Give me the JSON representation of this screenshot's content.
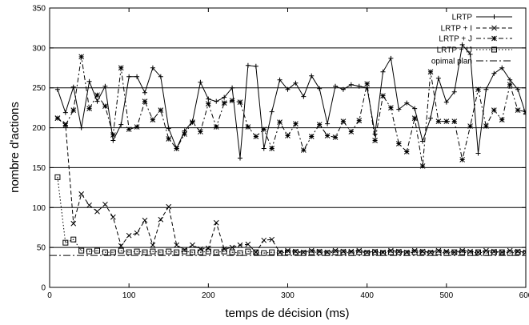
{
  "chart_data": {
    "type": "line",
    "title": "",
    "xlabel": "temps de décision (ms)",
    "ylabel": "nombre d'actions",
    "xlim": [
      0,
      600
    ],
    "ylim": [
      0,
      350
    ],
    "xticks": [
      0,
      100,
      200,
      300,
      400,
      500,
      600
    ],
    "yticks": [
      0,
      50,
      100,
      150,
      200,
      250,
      300,
      350
    ],
    "xtick_labels": [
      "0",
      "100",
      "200",
      "300",
      "400",
      "500",
      "600"
    ],
    "ytick_labels": [
      "0",
      "50",
      "100",
      "150",
      "200",
      "250",
      "300",
      "350"
    ],
    "grid": "horizontal lines at 50, 100, 150, 200, 250, 300",
    "legend_position": "top-right",
    "series": [
      {
        "name": "LRTP",
        "line": "solid",
        "marker": "plus",
        "x": [
          10,
          20,
          30,
          40,
          50,
          60,
          70,
          80,
          90,
          100,
          110,
          120,
          130,
          140,
          150,
          160,
          170,
          180,
          190,
          200,
          210,
          220,
          230,
          240,
          250,
          260,
          270,
          280,
          290,
          300,
          310,
          320,
          330,
          340,
          350,
          360,
          370,
          380,
          390,
          400,
          410,
          420,
          430,
          440,
          450,
          460,
          470,
          480,
          490,
          500,
          510,
          520,
          530,
          540,
          550,
          560,
          570,
          580,
          590,
          600
        ],
        "y": [
          248,
          219,
          251,
          200,
          258,
          233,
          252,
          184,
          204,
          264,
          264,
          244,
          275,
          264,
          199,
          174,
          196,
          208,
          257,
          236,
          233,
          238,
          250,
          162,
          278,
          277,
          174,
          220,
          260,
          248,
          256,
          239,
          265,
          249,
          205,
          252,
          248,
          254,
          252,
          250,
          192,
          270,
          287,
          223,
          231,
          224,
          183,
          212,
          262,
          232,
          245,
          304,
          292,
          168,
          248,
          268,
          275,
          260,
          248,
          217
        ]
      },
      {
        "name": "LRTP + I",
        "line": "dashed",
        "marker": "x",
        "x": [
          10,
          20,
          30,
          40,
          50,
          60,
          70,
          80,
          90,
          100,
          110,
          120,
          130,
          140,
          150,
          160,
          170,
          180,
          190,
          200,
          210,
          220,
          230,
          240,
          250,
          260,
          270,
          280,
          290,
          300,
          310,
          320,
          330,
          340,
          350,
          360,
          370,
          380,
          390,
          400,
          410,
          420,
          430,
          440,
          450,
          460,
          470,
          480,
          490,
          500,
          510,
          520,
          530,
          540,
          550,
          560,
          570,
          580,
          590,
          600
        ],
        "y": [
          212,
          205,
          80,
          117,
          103,
          95,
          104,
          88,
          52,
          65,
          68,
          84,
          53,
          85,
          101,
          53,
          47,
          53,
          48,
          49,
          81,
          48,
          50,
          53,
          54,
          44,
          59,
          60,
          44,
          46,
          45,
          44,
          46,
          45,
          44,
          46,
          45,
          45,
          46,
          44,
          45,
          44,
          46,
          45,
          44,
          46,
          45,
          44,
          46,
          45,
          44,
          46,
          45,
          44,
          46,
          45,
          44,
          46,
          45,
          44
        ]
      },
      {
        "name": "LRTP + J",
        "line": "dashdot",
        "marker": "star",
        "x": [
          10,
          20,
          30,
          40,
          50,
          60,
          70,
          80,
          90,
          100,
          110,
          120,
          130,
          140,
          150,
          160,
          170,
          180,
          190,
          200,
          210,
          220,
          230,
          240,
          250,
          260,
          270,
          280,
          290,
          300,
          310,
          320,
          330,
          340,
          350,
          360,
          370,
          380,
          390,
          400,
          410,
          420,
          430,
          440,
          450,
          460,
          470,
          480,
          490,
          500,
          510,
          520,
          530,
          540,
          550,
          560,
          570,
          580,
          590,
          600
        ],
        "y": [
          212,
          203,
          222,
          289,
          224,
          241,
          227,
          191,
          275,
          198,
          201,
          233,
          210,
          222,
          186,
          174,
          192,
          207,
          195,
          230,
          201,
          231,
          234,
          232,
          201,
          189,
          198,
          174,
          207,
          190,
          205,
          172,
          189,
          204,
          190,
          188,
          208,
          195,
          209,
          255,
          184,
          240,
          225,
          180,
          170,
          212,
          152,
          270,
          208,
          208,
          208,
          160,
          202,
          248,
          202,
          222,
          210,
          254,
          222,
          220
        ]
      },
      {
        "name": "LRTP + IJ",
        "line": "dotted",
        "marker": "square",
        "x": [
          10,
          20,
          30,
          40,
          50,
          60,
          70,
          80,
          90,
          100,
          110,
          120,
          130,
          140,
          150,
          160,
          170,
          180,
          190,
          200,
          210,
          220,
          230,
          240,
          250,
          260,
          270,
          280,
          290,
          300,
          310,
          320,
          330,
          340,
          350,
          360,
          370,
          380,
          390,
          400,
          410,
          420,
          430,
          440,
          450,
          460,
          470,
          480,
          490,
          500,
          510,
          520,
          530,
          540,
          550,
          560,
          570,
          580,
          590,
          600
        ],
        "y": [
          138,
          56,
          60,
          46,
          45,
          46,
          44,
          44,
          46,
          44,
          45,
          44,
          45,
          44,
          45,
          44,
          45,
          44,
          44,
          45,
          44,
          45,
          44,
          43,
          45,
          44,
          43,
          44,
          43,
          44,
          44,
          43,
          44,
          44,
          43,
          44,
          44,
          43,
          44,
          43,
          44,
          43,
          44,
          44,
          43,
          44,
          44,
          43,
          44,
          43,
          44,
          44,
          43,
          44,
          43,
          44,
          44,
          43,
          44,
          43
        ]
      },
      {
        "name": "opimal plan",
        "line": "dash-dot",
        "marker": "none",
        "x": [
          0,
          600
        ],
        "y": [
          40,
          40
        ]
      }
    ]
  }
}
